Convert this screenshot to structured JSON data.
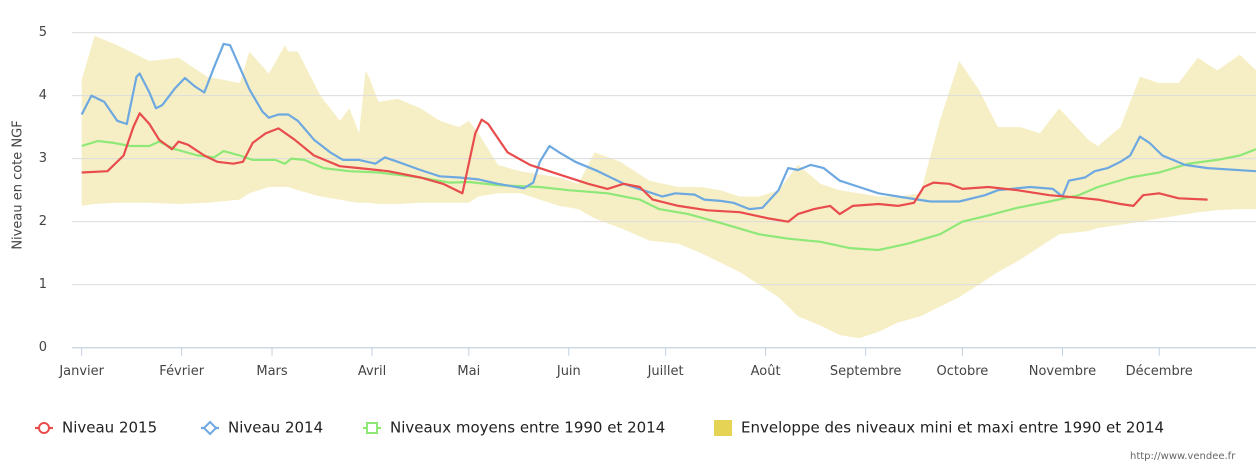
{
  "chart_data": {
    "type": "line",
    "y_label": "Niveau en cote NGF",
    "ylim": [
      -0.1,
      5.2
    ],
    "yticks": [
      0,
      1,
      2,
      3,
      4,
      5
    ],
    "xlim": [
      -2,
      365
    ],
    "xticks": [
      {
        "value": 1,
        "label": "Janvier"
      },
      {
        "value": 32,
        "label": "Février"
      },
      {
        "value": 60,
        "label": "Mars"
      },
      {
        "value": 91,
        "label": "Avril"
      },
      {
        "value": 121,
        "label": "Mai"
      },
      {
        "value": 152,
        "label": "Juin"
      },
      {
        "value": 182,
        "label": "Juillet"
      },
      {
        "value": 213,
        "label": "Août"
      },
      {
        "value": 244,
        "label": "Septembre"
      },
      {
        "value": 274,
        "label": "Octobre"
      },
      {
        "value": 305,
        "label": "Novembre"
      },
      {
        "value": 335,
        "label": "Décembre"
      }
    ],
    "grid": true,
    "legend": "bottom",
    "credit": "http://www.vendee.fr",
    "envelope": {
      "name": "Enveloppe des niveaux mini et maxi entre 1990 et 2014",
      "color": "#f6efc6",
      "legend_color": "#e4d354",
      "x": [
        1,
        5,
        12,
        22,
        31,
        40,
        50,
        53,
        59,
        64,
        65,
        68,
        75,
        81,
        84,
        87,
        89,
        90,
        93,
        99,
        106,
        112,
        118,
        121,
        124,
        130,
        137,
        143,
        149,
        155,
        160,
        168,
        177,
        186,
        193,
        199,
        205,
        211,
        217,
        223,
        230,
        236,
        242,
        248,
        254,
        261,
        267,
        273,
        279,
        285,
        292,
        298,
        304,
        313,
        316,
        323,
        329,
        335,
        341,
        347,
        353,
        360,
        365
      ],
      "high": [
        4.25,
        4.95,
        4.8,
        4.55,
        4.6,
        4.3,
        4.2,
        4.7,
        4.35,
        4.8,
        4.7,
        4.7,
        4.0,
        3.6,
        3.8,
        3.4,
        4.4,
        4.3,
        3.9,
        3.95,
        3.8,
        3.6,
        3.5,
        3.6,
        3.4,
        2.9,
        2.8,
        2.75,
        2.7,
        2.6,
        3.1,
        2.95,
        2.65,
        2.55,
        2.55,
        2.5,
        2.4,
        2.4,
        2.5,
        2.9,
        2.6,
        2.5,
        2.45,
        2.4,
        2.4,
        2.45,
        3.6,
        4.55,
        4.1,
        3.5,
        3.5,
        3.4,
        3.8,
        3.3,
        3.2,
        3.5,
        4.3,
        4.2,
        4.2,
        4.6,
        4.4,
        4.65,
        4.4
      ],
      "low": [
        2.25,
        2.28,
        2.3,
        2.3,
        2.28,
        2.3,
        2.35,
        2.45,
        2.55,
        2.55,
        2.55,
        2.5,
        2.4,
        2.35,
        2.32,
        2.3,
        2.3,
        2.3,
        2.28,
        2.28,
        2.3,
        2.3,
        2.3,
        2.3,
        2.4,
        2.45,
        2.45,
        2.35,
        2.25,
        2.2,
        2.05,
        1.9,
        1.7,
        1.65,
        1.5,
        1.35,
        1.2,
        1.0,
        0.8,
        0.5,
        0.35,
        0.2,
        0.15,
        0.25,
        0.4,
        0.5,
        0.65,
        0.8,
        1.0,
        1.2,
        1.4,
        1.6,
        1.8,
        1.85,
        1.9,
        1.95,
        2.0,
        2.05,
        2.1,
        2.15,
        2.18,
        2.2,
        2.2
      ]
    },
    "series": [
      {
        "name": "Niveau 2015",
        "color": "#e84c4c",
        "marker": "circle",
        "x": [
          1,
          9,
          14,
          17,
          19,
          22,
          25,
          29,
          31,
          34,
          39,
          43,
          48,
          51,
          54,
          58,
          62,
          67,
          73,
          81,
          87,
          96,
          106,
          113,
          119,
          123,
          125,
          127,
          133,
          140,
          149,
          158,
          164,
          169,
          174,
          178,
          186,
          195,
          205,
          214,
          220,
          223,
          228,
          233,
          236,
          240,
          248,
          254,
          259,
          262,
          265,
          270,
          274,
          282,
          291,
          301,
          310,
          316,
          323,
          327,
          330,
          335,
          341,
          350
        ],
        "values": [
          2.78,
          2.8,
          3.05,
          3.5,
          3.72,
          3.55,
          3.3,
          3.15,
          3.27,
          3.22,
          3.05,
          2.95,
          2.92,
          2.95,
          3.25,
          3.4,
          3.48,
          3.3,
          3.05,
          2.88,
          2.85,
          2.8,
          2.7,
          2.6,
          2.45,
          3.4,
          3.62,
          3.55,
          3.1,
          2.9,
          2.75,
          2.6,
          2.52,
          2.6,
          2.55,
          2.35,
          2.25,
          2.18,
          2.15,
          2.05,
          2.0,
          2.12,
          2.2,
          2.25,
          2.12,
          2.25,
          2.28,
          2.25,
          2.3,
          2.55,
          2.62,
          2.6,
          2.52,
          2.55,
          2.5,
          2.42,
          2.38,
          2.35,
          2.28,
          2.25,
          2.42,
          2.45,
          2.37,
          2.35
        ]
      },
      {
        "name": "Niveau 2014",
        "color": "#6ea8e0",
        "marker": "diamond",
        "x": [
          1,
          4,
          8,
          12,
          15,
          18,
          19,
          22,
          24,
          26,
          30,
          33,
          36,
          39,
          42,
          45,
          47,
          50,
          53,
          57,
          59,
          62,
          65,
          68,
          73,
          78,
          82,
          87,
          92,
          95,
          99,
          106,
          112,
          118,
          124,
          130,
          138,
          141,
          143,
          146,
          149,
          154,
          161,
          169,
          175,
          181,
          185,
          191,
          194,
          199,
          203,
          208,
          212,
          217,
          220,
          223,
          227,
          231,
          236,
          242,
          248,
          254,
          264,
          273,
          281,
          285,
          295,
          302,
          305,
          307,
          312,
          315,
          319,
          323,
          326,
          329,
          332,
          336,
          343,
          350,
          365
        ],
        "values": [
          3.7,
          4.0,
          3.9,
          3.6,
          3.55,
          4.3,
          4.35,
          4.05,
          3.8,
          3.85,
          4.12,
          4.28,
          4.15,
          4.05,
          4.45,
          4.82,
          4.8,
          4.45,
          4.1,
          3.75,
          3.65,
          3.7,
          3.7,
          3.6,
          3.3,
          3.1,
          2.98,
          2.98,
          2.92,
          3.02,
          2.95,
          2.82,
          2.72,
          2.7,
          2.67,
          2.6,
          2.53,
          2.62,
          2.95,
          3.2,
          3.1,
          2.95,
          2.8,
          2.6,
          2.5,
          2.4,
          2.45,
          2.43,
          2.35,
          2.33,
          2.3,
          2.2,
          2.22,
          2.5,
          2.85,
          2.82,
          2.9,
          2.85,
          2.65,
          2.55,
          2.45,
          2.4,
          2.32,
          2.32,
          2.42,
          2.5,
          2.55,
          2.52,
          2.4,
          2.65,
          2.7,
          2.8,
          2.85,
          2.95,
          3.05,
          3.35,
          3.25,
          3.05,
          2.9,
          2.85,
          2.8
        ]
      },
      {
        "name": "Niveaux moyens entre 1990 et 2014",
        "color": "#8ee878",
        "marker": "square",
        "x": [
          1,
          6,
          11,
          16,
          22,
          25,
          30,
          37,
          42,
          45,
          50,
          54,
          61,
          64,
          66,
          70,
          76,
          84,
          93,
          106,
          115,
          121,
          130,
          143,
          152,
          164,
          174,
          180,
          189,
          199,
          211,
          220,
          230,
          239,
          248,
          257,
          267,
          274,
          282,
          291,
          301,
          310,
          316,
          326,
          335,
          344,
          353,
          360,
          365
        ],
        "values": [
          3.2,
          3.28,
          3.25,
          3.2,
          3.2,
          3.27,
          3.15,
          3.05,
          3.02,
          3.12,
          3.05,
          2.98,
          2.98,
          2.92,
          3.0,
          2.98,
          2.85,
          2.8,
          2.78,
          2.7,
          2.62,
          2.63,
          2.58,
          2.55,
          2.5,
          2.45,
          2.35,
          2.2,
          2.12,
          1.98,
          1.8,
          1.73,
          1.68,
          1.58,
          1.55,
          1.65,
          1.8,
          2.0,
          2.1,
          2.22,
          2.32,
          2.42,
          2.55,
          2.7,
          2.78,
          2.92,
          2.98,
          3.05,
          3.15
        ]
      }
    ]
  }
}
